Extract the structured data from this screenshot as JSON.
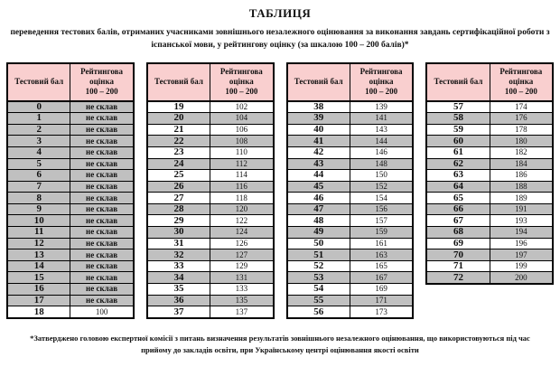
{
  "page": {
    "title": "ТАБЛИЦЯ",
    "subtitle": "переведення тестових балів, отриманих учасниками зовнішнього незалежного оцінювання за виконання завдань сертифікаційної роботи з іспанської мови, у рейтингову оцінку (за шкалою 100 – 200 балів)*",
    "footnote": "*Затверджено головою експертної комісії з питань визначення результатів зовнішнього незалежного оцінювання, що використовуються під час прийому до закладів освіти, при Українському центрі оцінювання якості освіти"
  },
  "colors": {
    "header_bg": "#f9cfcf",
    "shaded_row_bg": "#c0c0c0",
    "border": "#000000"
  },
  "table": {
    "col1_header": "Тестовий бал",
    "col2_header_title": "Рейтингова оцінка",
    "col2_header_range": "100 – 200",
    "fail_label": "не склав",
    "groups": [
      {
        "rows": [
          {
            "score": "0",
            "rating": "не склав"
          },
          {
            "score": "1",
            "rating": "не склав"
          },
          {
            "score": "2",
            "rating": "не склав"
          },
          {
            "score": "3",
            "rating": "не склав"
          },
          {
            "score": "4",
            "rating": "не склав"
          },
          {
            "score": "5",
            "rating": "не склав"
          },
          {
            "score": "6",
            "rating": "не склав"
          },
          {
            "score": "7",
            "rating": "не склав"
          },
          {
            "score": "8",
            "rating": "не склав"
          },
          {
            "score": "9",
            "rating": "не склав"
          },
          {
            "score": "10",
            "rating": "не склав"
          },
          {
            "score": "11",
            "rating": "не склав"
          },
          {
            "score": "12",
            "rating": "не склав"
          },
          {
            "score": "13",
            "rating": "не склав"
          },
          {
            "score": "14",
            "rating": "не склав"
          },
          {
            "score": "15",
            "rating": "не склав"
          },
          {
            "score": "16",
            "rating": "не склав"
          },
          {
            "score": "17",
            "rating": "не склав"
          },
          {
            "score": "18",
            "rating": "100"
          }
        ]
      },
      {
        "rows": [
          {
            "score": "19",
            "rating": "102"
          },
          {
            "score": "20",
            "rating": "104"
          },
          {
            "score": "21",
            "rating": "106"
          },
          {
            "score": "22",
            "rating": "108"
          },
          {
            "score": "23",
            "rating": "110"
          },
          {
            "score": "24",
            "rating": "112"
          },
          {
            "score": "25",
            "rating": "114"
          },
          {
            "score": "26",
            "rating": "116"
          },
          {
            "score": "27",
            "rating": "118"
          },
          {
            "score": "28",
            "rating": "120"
          },
          {
            "score": "29",
            "rating": "122"
          },
          {
            "score": "30",
            "rating": "124"
          },
          {
            "score": "31",
            "rating": "126"
          },
          {
            "score": "32",
            "rating": "127"
          },
          {
            "score": "33",
            "rating": "129"
          },
          {
            "score": "34",
            "rating": "131"
          },
          {
            "score": "35",
            "rating": "133"
          },
          {
            "score": "36",
            "rating": "135"
          },
          {
            "score": "37",
            "rating": "137"
          }
        ]
      },
      {
        "rows": [
          {
            "score": "38",
            "rating": "139"
          },
          {
            "score": "39",
            "rating": "141"
          },
          {
            "score": "40",
            "rating": "143"
          },
          {
            "score": "41",
            "rating": "144"
          },
          {
            "score": "42",
            "rating": "146"
          },
          {
            "score": "43",
            "rating": "148"
          },
          {
            "score": "44",
            "rating": "150"
          },
          {
            "score": "45",
            "rating": "152"
          },
          {
            "score": "46",
            "rating": "154"
          },
          {
            "score": "47",
            "rating": "156"
          },
          {
            "score": "48",
            "rating": "157"
          },
          {
            "score": "49",
            "rating": "159"
          },
          {
            "score": "50",
            "rating": "161"
          },
          {
            "score": "51",
            "rating": "163"
          },
          {
            "score": "52",
            "rating": "165"
          },
          {
            "score": "53",
            "rating": "167"
          },
          {
            "score": "54",
            "rating": "169"
          },
          {
            "score": "55",
            "rating": "171"
          },
          {
            "score": "56",
            "rating": "173"
          }
        ]
      },
      {
        "rows": [
          {
            "score": "57",
            "rating": "174"
          },
          {
            "score": "58",
            "rating": "176"
          },
          {
            "score": "59",
            "rating": "178"
          },
          {
            "score": "60",
            "rating": "180"
          },
          {
            "score": "61",
            "rating": "182"
          },
          {
            "score": "62",
            "rating": "184"
          },
          {
            "score": "63",
            "rating": "186"
          },
          {
            "score": "64",
            "rating": "188"
          },
          {
            "score": "65",
            "rating": "189"
          },
          {
            "score": "66",
            "rating": "191"
          },
          {
            "score": "67",
            "rating": "193"
          },
          {
            "score": "68",
            "rating": "194"
          },
          {
            "score": "69",
            "rating": "196"
          },
          {
            "score": "70",
            "rating": "197"
          },
          {
            "score": "71",
            "rating": "199"
          },
          {
            "score": "72",
            "rating": "200"
          }
        ]
      }
    ]
  }
}
